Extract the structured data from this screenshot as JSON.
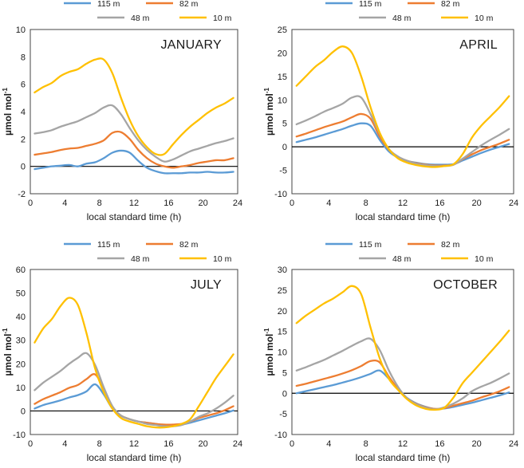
{
  "figure": {
    "series_colors": {
      "115 m": "#5B9BD5",
      "82 m": "#ED7D31",
      "48 m": "#A5A5A5",
      "10 m": "#FFC000"
    }
  },
  "chart_data": [
    {
      "type": "line",
      "title": "JANUARY",
      "xlabel": "local standard time (h)",
      "ylabel": "µmol mol-1",
      "xlim": [
        0,
        24
      ],
      "ylim": [
        -2,
        10
      ],
      "xticks": [
        0,
        4,
        8,
        12,
        16,
        20,
        24
      ],
      "yticks": [
        -2,
        0,
        2,
        4,
        6,
        8,
        10
      ],
      "legend": [
        "115 m",
        "82 m",
        "48 m",
        "10 m"
      ],
      "x": [
        0.5,
        1.5,
        2.5,
        3.5,
        4.5,
        5.5,
        6.5,
        7.5,
        8.5,
        9.5,
        10.5,
        11.5,
        12.5,
        13.5,
        14.5,
        15.5,
        16.5,
        17.5,
        18.5,
        19.5,
        20.5,
        21.5,
        22.5,
        23.5
      ],
      "series": [
        {
          "name": "115 m",
          "values": [
            -0.2,
            -0.1,
            0.0,
            0.05,
            0.1,
            0.0,
            0.2,
            0.3,
            0.6,
            1.0,
            1.15,
            1.0,
            0.4,
            -0.1,
            -0.35,
            -0.5,
            -0.5,
            -0.5,
            -0.45,
            -0.45,
            -0.4,
            -0.45,
            -0.45,
            -0.4
          ]
        },
        {
          "name": "82 m",
          "values": [
            0.85,
            0.95,
            1.05,
            1.2,
            1.3,
            1.35,
            1.5,
            1.65,
            1.9,
            2.45,
            2.5,
            2.0,
            1.2,
            0.6,
            0.2,
            0.0,
            -0.1,
            0.0,
            0.1,
            0.25,
            0.35,
            0.45,
            0.45,
            0.6
          ]
        },
        {
          "name": "48 m",
          "values": [
            2.4,
            2.5,
            2.65,
            2.9,
            3.1,
            3.3,
            3.6,
            3.9,
            4.3,
            4.45,
            3.8,
            2.8,
            1.9,
            1.2,
            0.7,
            0.35,
            0.5,
            0.8,
            1.1,
            1.3,
            1.5,
            1.7,
            1.85,
            2.05
          ]
        },
        {
          "name": "10 m",
          "values": [
            5.4,
            5.8,
            6.1,
            6.6,
            6.9,
            7.1,
            7.5,
            7.8,
            7.8,
            6.8,
            5.0,
            3.4,
            2.2,
            1.4,
            0.9,
            0.9,
            1.6,
            2.3,
            2.9,
            3.4,
            3.9,
            4.3,
            4.6,
            5.0
          ]
        }
      ]
    },
    {
      "type": "line",
      "title": "APRIL",
      "xlabel": "local standard time (h)",
      "ylabel": "µmol mol-1",
      "xlim": [
        0,
        24
      ],
      "ylim": [
        -10,
        25
      ],
      "xticks": [
        0,
        4,
        8,
        12,
        16,
        20,
        24
      ],
      "yticks": [
        -10,
        -5,
        0,
        5,
        10,
        15,
        20,
        25
      ],
      "legend": [
        "115 m",
        "82 m",
        "48 m",
        "10 m"
      ],
      "x": [
        0.5,
        1.5,
        2.5,
        3.5,
        4.5,
        5.5,
        6.5,
        7.5,
        8.5,
        9.5,
        10.5,
        11.5,
        12.5,
        13.5,
        14.5,
        15.5,
        16.5,
        17.5,
        18.5,
        19.5,
        20.5,
        21.5,
        22.5,
        23.5
      ],
      "series": [
        {
          "name": "115 m",
          "values": [
            1.0,
            1.5,
            2.0,
            2.6,
            3.2,
            3.8,
            4.5,
            5.0,
            4.5,
            1.5,
            -1.0,
            -2.3,
            -3.0,
            -3.4,
            -3.7,
            -3.8,
            -3.8,
            -3.7,
            -2.9,
            -2.1,
            -1.3,
            -0.6,
            0.0,
            0.6
          ]
        },
        {
          "name": "82 m",
          "values": [
            2.2,
            2.8,
            3.5,
            4.2,
            4.8,
            5.4,
            6.3,
            7.0,
            6.0,
            2.2,
            -0.6,
            -2.2,
            -3.0,
            -3.5,
            -3.8,
            -4.0,
            -4.0,
            -3.8,
            -2.6,
            -1.6,
            -0.7,
            0.0,
            0.7,
            1.5
          ]
        },
        {
          "name": "48 m",
          "values": [
            4.8,
            5.6,
            6.5,
            7.5,
            8.3,
            9.2,
            10.5,
            10.5,
            7.0,
            2.8,
            -0.5,
            -2.1,
            -3.0,
            -3.6,
            -3.9,
            -4.1,
            -4.1,
            -3.8,
            -2.5,
            -1.1,
            0.3,
            1.5,
            2.6,
            3.8
          ]
        },
        {
          "name": "10 m",
          "values": [
            13.0,
            15.0,
            17.0,
            18.5,
            20.3,
            21.4,
            20.0,
            15.0,
            8.5,
            3.0,
            -0.5,
            -2.5,
            -3.4,
            -3.9,
            -4.2,
            -4.3,
            -4.1,
            -3.7,
            -1.5,
            2.0,
            4.5,
            6.5,
            8.5,
            10.8
          ]
        }
      ]
    },
    {
      "type": "line",
      "title": "JULY",
      "xlabel": "local standard time (h)",
      "ylabel": "µmol mol-1",
      "xlim": [
        0,
        24
      ],
      "ylim": [
        -10,
        60
      ],
      "xticks": [
        0,
        4,
        8,
        12,
        16,
        20,
        24
      ],
      "yticks": [
        -10,
        0,
        10,
        20,
        30,
        40,
        50,
        60
      ],
      "legend": [
        "115 m",
        "82 m",
        "48 m",
        "10 m"
      ],
      "x": [
        0.5,
        1.5,
        2.5,
        3.5,
        4.5,
        5.5,
        6.5,
        7.5,
        8.5,
        9.5,
        10.5,
        11.5,
        12.5,
        13.5,
        14.5,
        15.5,
        16.5,
        17.5,
        18.5,
        19.5,
        20.5,
        21.5,
        22.5,
        23.5
      ],
      "series": [
        {
          "name": "115 m",
          "values": [
            1.0,
            2.5,
            3.5,
            4.5,
            5.7,
            6.7,
            8.3,
            11.3,
            7.0,
            1.0,
            -2.0,
            -3.5,
            -4.5,
            -5.0,
            -5.5,
            -6.0,
            -6.0,
            -5.8,
            -5.0,
            -4.0,
            -3.0,
            -2.0,
            -1.0,
            0.2
          ]
        },
        {
          "name": "82 m",
          "values": [
            3.0,
            5.0,
            6.5,
            8.0,
            9.8,
            11.0,
            13.5,
            15.5,
            9.5,
            1.5,
            -2.0,
            -3.5,
            -4.5,
            -5.0,
            -5.5,
            -5.8,
            -5.8,
            -5.5,
            -4.5,
            -3.0,
            -2.0,
            -1.0,
            0.3,
            2.0
          ]
        },
        {
          "name": "48 m",
          "values": [
            8.8,
            12.0,
            14.5,
            17.0,
            20.0,
            22.5,
            24.5,
            19.5,
            10.0,
            2.0,
            -2.0,
            -3.5,
            -4.5,
            -5.5,
            -6.0,
            -6.5,
            -6.5,
            -6.0,
            -4.5,
            -2.5,
            -1.0,
            1.0,
            3.5,
            6.5
          ]
        },
        {
          "name": "10 m",
          "values": [
            29.0,
            35.0,
            39.0,
            44.5,
            48.0,
            45.0,
            33.0,
            18.0,
            8.0,
            1.0,
            -3.0,
            -4.5,
            -5.5,
            -6.5,
            -7.0,
            -7.0,
            -6.5,
            -5.5,
            -3.5,
            2.0,
            8.0,
            14.0,
            19.0,
            24.0
          ]
        }
      ]
    },
    {
      "type": "line",
      "title": "OCTOBER",
      "xlabel": "local standard time (h)",
      "ylabel": "µmol mol-1",
      "xlim": [
        0,
        24
      ],
      "ylim": [
        -10,
        30
      ],
      "xticks": [
        0,
        4,
        8,
        12,
        16,
        20,
        24
      ],
      "yticks": [
        -10,
        -5,
        0,
        5,
        10,
        15,
        20,
        25,
        30
      ],
      "legend": [
        "115 m",
        "82 m",
        "48 m",
        "10 m"
      ],
      "x": [
        0.5,
        1.5,
        2.5,
        3.5,
        4.5,
        5.5,
        6.5,
        7.5,
        8.5,
        9.5,
        10.5,
        11.5,
        12.5,
        13.5,
        14.5,
        15.5,
        16.5,
        17.5,
        18.5,
        19.5,
        20.5,
        21.5,
        22.5,
        23.5
      ],
      "series": [
        {
          "name": "115 m",
          "values": [
            0.0,
            0.5,
            1.0,
            1.5,
            2.0,
            2.6,
            3.2,
            3.9,
            4.7,
            5.5,
            3.5,
            1.0,
            -1.2,
            -2.5,
            -3.3,
            -3.8,
            -3.7,
            -3.3,
            -2.8,
            -2.3,
            -1.7,
            -1.1,
            -0.5,
            0.2
          ]
        },
        {
          "name": "82 m",
          "values": [
            1.8,
            2.3,
            2.9,
            3.5,
            4.1,
            4.8,
            5.6,
            6.6,
            7.8,
            7.5,
            4.0,
            1.0,
            -1.3,
            -2.6,
            -3.4,
            -3.8,
            -3.6,
            -3.0,
            -2.4,
            -1.8,
            -1.0,
            -0.3,
            0.5,
            1.5
          ]
        },
        {
          "name": "48 m",
          "values": [
            5.5,
            6.3,
            7.2,
            8.1,
            9.2,
            10.3,
            11.5,
            12.6,
            13.2,
            10.5,
            5.5,
            1.5,
            -1.3,
            -2.7,
            -3.5,
            -3.9,
            -3.4,
            -2.5,
            -1.2,
            0.5,
            1.6,
            2.5,
            3.6,
            4.8
          ]
        },
        {
          "name": "10 m",
          "values": [
            17.0,
            18.8,
            20.3,
            21.8,
            23.0,
            24.5,
            26.0,
            24.0,
            16.0,
            8.5,
            3.5,
            0.8,
            -1.5,
            -3.0,
            -3.8,
            -4.0,
            -3.5,
            -1.0,
            2.5,
            5.0,
            7.5,
            10.0,
            12.5,
            15.2
          ]
        }
      ]
    }
  ]
}
